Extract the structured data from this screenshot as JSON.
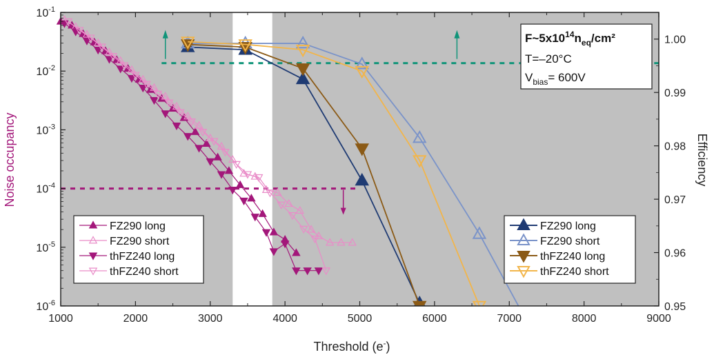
{
  "chart_data": {
    "type": "line",
    "x_axis": {
      "label_base": "Threshold (e",
      "label_sup": "-",
      "label_tail": ")",
      "range": [
        1000,
        9000
      ],
      "ticks": [
        "1000",
        "2000",
        "3000",
        "4000",
        "5000",
        "6000",
        "7000",
        "8000",
        "9000"
      ]
    },
    "y_left": {
      "label": "Noise occupancy",
      "scale": "log",
      "range": [
        1e-06,
        0.1
      ],
      "tick_bases": [
        "10",
        "10",
        "10",
        "10",
        "10",
        "10"
      ],
      "tick_exps": [
        "-6",
        "-5",
        "-4",
        "-3",
        "-2",
        "-1"
      ]
    },
    "y_right": {
      "label": "Efficiency",
      "range": [
        0.95,
        1.005
      ],
      "ticks": [
        "0.95",
        "0.96",
        "0.97",
        "0.98",
        "0.99",
        "1.00"
      ]
    },
    "colors": {
      "FZ290_long": "#1f3b73",
      "FZ290_short": "#7a93c9",
      "thFZ240_long": "#8b5a16",
      "thFZ240_short": "#f2b54a",
      "noise_long": "#a3177a",
      "noise_short": "#e98cc8",
      "efficiency_ref": "#0f9479",
      "background": "#c0c0c0"
    },
    "unshaded_band": [
      3300,
      3830
    ],
    "noise_reference": {
      "y": 0.0001,
      "x_range": [
        1000,
        5000
      ]
    },
    "efficiency_reference": {
      "y": 0.9955,
      "x_range": [
        2350,
        9000
      ]
    },
    "annotation": {
      "fluence_pre": "F~5x10",
      "fluence_exp": "14",
      "fluence_mid": "n",
      "fluence_sub": "eq",
      "fluence_tail": "/cm²",
      "temp": "T=–20°C",
      "vbias_pre": "V",
      "vbias_sub": "bias",
      "vbias_tail": "= 600V"
    },
    "noise_series": [
      {
        "name": "FZ290 long",
        "marker": "triangle-up",
        "filled": true,
        "color": "#a3177a",
        "points": [
          [
            1000,
            0.07
          ],
          [
            1150,
            0.06
          ],
          [
            1300,
            0.043
          ],
          [
            1450,
            0.031
          ],
          [
            1600,
            0.022
          ],
          [
            1750,
            0.0155
          ],
          [
            1900,
            0.011
          ],
          [
            2050,
            0.0072
          ],
          [
            2200,
            0.0048
          ],
          [
            2350,
            0.0034
          ],
          [
            2500,
            0.0023
          ],
          [
            2650,
            0.0016
          ],
          [
            2800,
            0.00092
          ],
          [
            2950,
            0.00058
          ],
          [
            3100,
            0.00034
          ],
          [
            3250,
            0.0002
          ],
          [
            3400,
            0.000115
          ],
          [
            3550,
            6.8e-05
          ],
          [
            3700,
            3.7e-05
          ],
          [
            3850,
            1.8e-05
          ],
          [
            4000,
            1.35e-05
          ],
          [
            4150,
            8e-06
          ]
        ]
      },
      {
        "name": "FZ290 short",
        "marker": "triangle-up",
        "filled": false,
        "color": "#e98cc8",
        "points": [
          [
            1050,
            0.075
          ],
          [
            1200,
            0.057
          ],
          [
            1350,
            0.042
          ],
          [
            1500,
            0.03
          ],
          [
            1650,
            0.021
          ],
          [
            1800,
            0.015
          ],
          [
            1950,
            0.0105
          ],
          [
            2100,
            0.0072
          ],
          [
            2250,
            0.0052
          ],
          [
            2400,
            0.0037
          ],
          [
            2550,
            0.0025
          ],
          [
            2700,
            0.0017
          ],
          [
            2850,
            0.00118
          ],
          [
            3000,
            0.00072
          ],
          [
            3150,
            0.00052
          ],
          [
            3300,
            0.00031
          ],
          [
            3450,
            0.00018
          ],
          [
            3600,
            0.00016
          ],
          [
            3750,
            9.5e-05
          ],
          [
            3900,
            8.5e-05
          ],
          [
            4050,
            5.5e-05
          ],
          [
            4200,
            4.2e-05
          ],
          [
            4350,
            2e-05
          ],
          [
            4450,
            1.55e-05
          ],
          [
            4600,
            1.2e-05
          ],
          [
            4750,
            1.2e-05
          ],
          [
            4900,
            1.2e-05
          ]
        ]
      },
      {
        "name": "thFZ240 long",
        "marker": "triangle-down",
        "filled": true,
        "color": "#a3177a",
        "points": [
          [
            1050,
            0.065
          ],
          [
            1200,
            0.047
          ],
          [
            1350,
            0.033
          ],
          [
            1500,
            0.023
          ],
          [
            1650,
            0.016
          ],
          [
            1800,
            0.011
          ],
          [
            1950,
            0.0076
          ],
          [
            2100,
            0.0052
          ],
          [
            2250,
            0.0032
          ],
          [
            2400,
            0.0019
          ],
          [
            2550,
            0.00118
          ],
          [
            2700,
            0.00078
          ],
          [
            2850,
            0.00049
          ],
          [
            3000,
            0.00029
          ],
          [
            3150,
            0.000175
          ],
          [
            3300,
            9.5e-05
          ],
          [
            3450,
            6.2e-05
          ],
          [
            3600,
            3.3e-05
          ],
          [
            3750,
            1.8e-05
          ],
          [
            3850,
            8.5e-06
          ],
          [
            4000,
            1.15e-05
          ],
          [
            4150,
            4e-06
          ],
          [
            4300,
            4e-06
          ],
          [
            4450,
            4e-06
          ]
        ]
      },
      {
        "name": "thFZ240 short",
        "marker": "triangle-down",
        "filled": false,
        "color": "#e98cc8",
        "points": [
          [
            1100,
            0.07
          ],
          [
            1250,
            0.05
          ],
          [
            1400,
            0.037
          ],
          [
            1550,
            0.026
          ],
          [
            1700,
            0.018
          ],
          [
            1850,
            0.0125
          ],
          [
            2000,
            0.0086
          ],
          [
            2150,
            0.006
          ],
          [
            2300,
            0.0041
          ],
          [
            2450,
            0.0029
          ],
          [
            2600,
            0.00198
          ],
          [
            2750,
            0.00138
          ],
          [
            2900,
            0.00092
          ],
          [
            3050,
            0.00064
          ],
          [
            3200,
            0.00042
          ],
          [
            3350,
            0.00026
          ],
          [
            3500,
            0.000175
          ],
          [
            3650,
            0.000155
          ],
          [
            3800,
            8.5e-05
          ],
          [
            3950,
            5.3e-05
          ],
          [
            4100,
            3.5e-05
          ],
          [
            4250,
            2.05e-05
          ],
          [
            4400,
            1.4e-05
          ],
          [
            4550,
            4e-06
          ]
        ]
      }
    ],
    "efficiency_series": [
      {
        "name": "FZ290 long",
        "marker": "triangle-up",
        "filled": true,
        "color": "#1f3b73",
        "points": [
          [
            2700,
            0.9985
          ],
          [
            3470,
            0.998
          ],
          [
            4240,
            0.9925
          ],
          [
            5030,
            0.9735
          ],
          [
            5800,
            0.9505
          ],
          [
            5930,
            0.947
          ]
        ]
      },
      {
        "name": "FZ290 short",
        "marker": "triangle-up",
        "filled": false,
        "color": "#7a93c9",
        "points": [
          [
            2700,
            0.9992
          ],
          [
            3470,
            0.9992
          ],
          [
            4240,
            0.9992
          ],
          [
            5030,
            0.9953
          ],
          [
            5800,
            0.9815
          ],
          [
            6600,
            0.9635
          ],
          [
            7200,
            0.948
          ]
        ]
      },
      {
        "name": "thFZ240 long",
        "marker": "triangle-down",
        "filled": true,
        "color": "#8b5a16",
        "points": [
          [
            2700,
            0.999
          ],
          [
            3470,
            0.9985
          ],
          [
            4240,
            0.9945
          ],
          [
            5030,
            0.9795
          ],
          [
            5800,
            0.95
          ],
          [
            5810,
            0.948
          ]
        ]
      },
      {
        "name": "thFZ240 short",
        "marker": "triangle-down",
        "filled": false,
        "color": "#f2b54a",
        "points": [
          [
            2700,
            0.9995
          ],
          [
            3470,
            0.999
          ],
          [
            4240,
            0.998
          ],
          [
            5030,
            0.994
          ],
          [
            5800,
            0.9773
          ],
          [
            6600,
            0.95
          ],
          [
            6620,
            0.948
          ]
        ]
      }
    ],
    "legend_left": [
      {
        "label": "FZ290 long",
        "marker": "triangle-up",
        "filled": true,
        "color": "#a3177a"
      },
      {
        "label": "FZ290 short",
        "marker": "triangle-up",
        "filled": false,
        "color": "#e98cc8"
      },
      {
        "label": "thFZ240 long",
        "marker": "triangle-down",
        "filled": true,
        "color": "#a3177a"
      },
      {
        "label": "thFZ240 short",
        "marker": "triangle-down",
        "filled": false,
        "color": "#e98cc8"
      }
    ],
    "legend_right": [
      {
        "label": "FZ290 long",
        "marker": "triangle-up",
        "filled": true,
        "color": "#1f3b73"
      },
      {
        "label": "FZ290 short",
        "marker": "triangle-up",
        "filled": false,
        "color": "#7a93c9"
      },
      {
        "label": "thFZ240 long",
        "marker": "triangle-down",
        "filled": true,
        "color": "#8b5a16"
      },
      {
        "label": "thFZ240 short",
        "marker": "triangle-down",
        "filled": false,
        "color": "#f2b54a"
      }
    ]
  }
}
